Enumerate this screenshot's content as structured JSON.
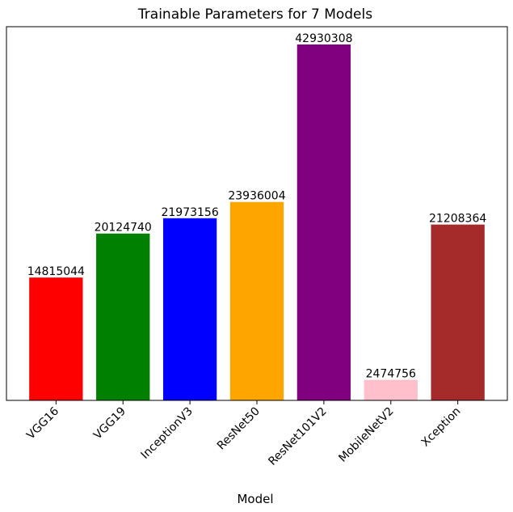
{
  "chart_data": {
    "type": "bar",
    "title": "Trainable Parameters for 7 Models",
    "x_label": "Model",
    "categories": [
      "VGG16",
      "VGG19",
      "InceptionV3",
      "ResNet50",
      "ResNet101V2",
      "MobileNetV2",
      "Xception"
    ],
    "values": [
      14815044,
      20124740,
      21973156,
      23936004,
      42930308,
      2474756,
      21208364
    ],
    "colors": [
      "#ff0000",
      "#008000",
      "#0000ff",
      "#ffa500",
      "#800080",
      "#ffc0cb",
      "#a52a2a"
    ],
    "ylim": [
      0,
      45076823
    ]
  }
}
